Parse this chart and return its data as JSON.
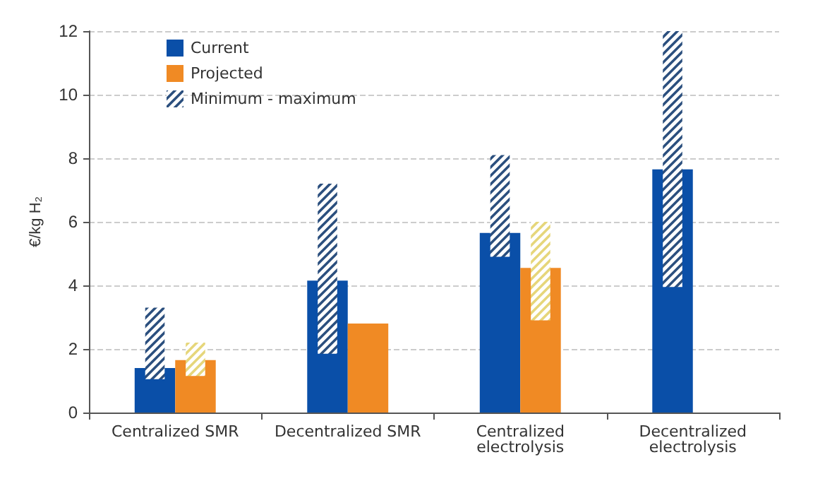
{
  "chart_data": {
    "type": "bar",
    "ylabel": "€/kg H₂",
    "categories": [
      "Centralized SMR",
      "Decentralized SMR",
      "Centralized\nelectrolysis",
      "Decentralized\nelectrolysis"
    ],
    "series": [
      {
        "name": "Current",
        "color": "#0a4fa8",
        "values": [
          1.4,
          4.15,
          5.65,
          7.65
        ]
      },
      {
        "name": "Projected",
        "color": "#f08a24",
        "values": [
          1.65,
          2.8,
          4.55,
          null
        ]
      },
      {
        "name": "Minimum - maximum",
        "color": "#2b4f7e",
        "base": [
          1.05,
          1.85,
          4.9,
          3.95
        ],
        "values": [
          2.25,
          5.35,
          3.2,
          8.05
        ]
      },
      {
        "color": "#e6d67a",
        "base": [
          1.15,
          null,
          2.9,
          null
        ],
        "values": [
          1.05,
          null,
          3.1,
          null
        ]
      }
    ],
    "ylim": [
      0,
      12
    ],
    "yticks": [
      0,
      2,
      4,
      6,
      8,
      10,
      12
    ],
    "grid": "y",
    "legend": "top left"
  }
}
